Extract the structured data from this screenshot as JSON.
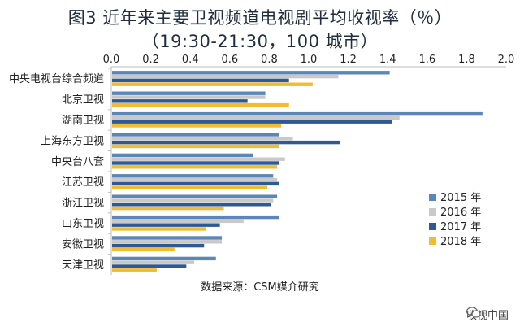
{
  "chart_data": {
    "type": "bar",
    "orientation": "horizontal",
    "title": "图3 近年来主要卫视频道电视剧平均收视率（％）",
    "subtitle": "（19:30-21:30，100 城市）",
    "categories": [
      "中央电视台综合频道",
      "北京卫视",
      "湖南卫视",
      "上海东方卫视",
      "中央台八套",
      "江苏卫视",
      "浙江卫视",
      "山东卫视",
      "安徽卫视",
      "天津卫视"
    ],
    "xlim": [
      0,
      2.0
    ],
    "xticks": [
      "0.0",
      "0.2",
      "0.4",
      "0.6",
      "0.8",
      "1.0",
      "1.2",
      "1.4",
      "1.6",
      "1.8",
      "2.0"
    ],
    "xaxis_position": "top",
    "legend_position": "lower-right",
    "series": [
      {
        "name": "2015 年",
        "color": "#5b86b5",
        "values": [
          1.41,
          0.78,
          1.88,
          0.85,
          0.72,
          0.82,
          0.84,
          0.85,
          0.56,
          0.53
        ]
      },
      {
        "name": "2016 年",
        "color": "#c9c9c9",
        "values": [
          1.15,
          0.78,
          1.46,
          0.92,
          0.88,
          0.84,
          0.82,
          0.67,
          0.56,
          0.42
        ]
      },
      {
        "name": "2017 年",
        "color": "#2d5a96",
        "values": [
          0.9,
          0.69,
          1.42,
          1.16,
          0.85,
          0.85,
          0.81,
          0.55,
          0.47,
          0.38
        ]
      },
      {
        "name": "2018 年",
        "color": "#f2bc30",
        "values": [
          1.02,
          0.9,
          0.86,
          0.85,
          0.84,
          0.79,
          0.57,
          0.48,
          0.32,
          0.23
        ]
      }
    ]
  },
  "source_text": "数据来源：CSM媒介研究",
  "watermark_text": "收视中国"
}
